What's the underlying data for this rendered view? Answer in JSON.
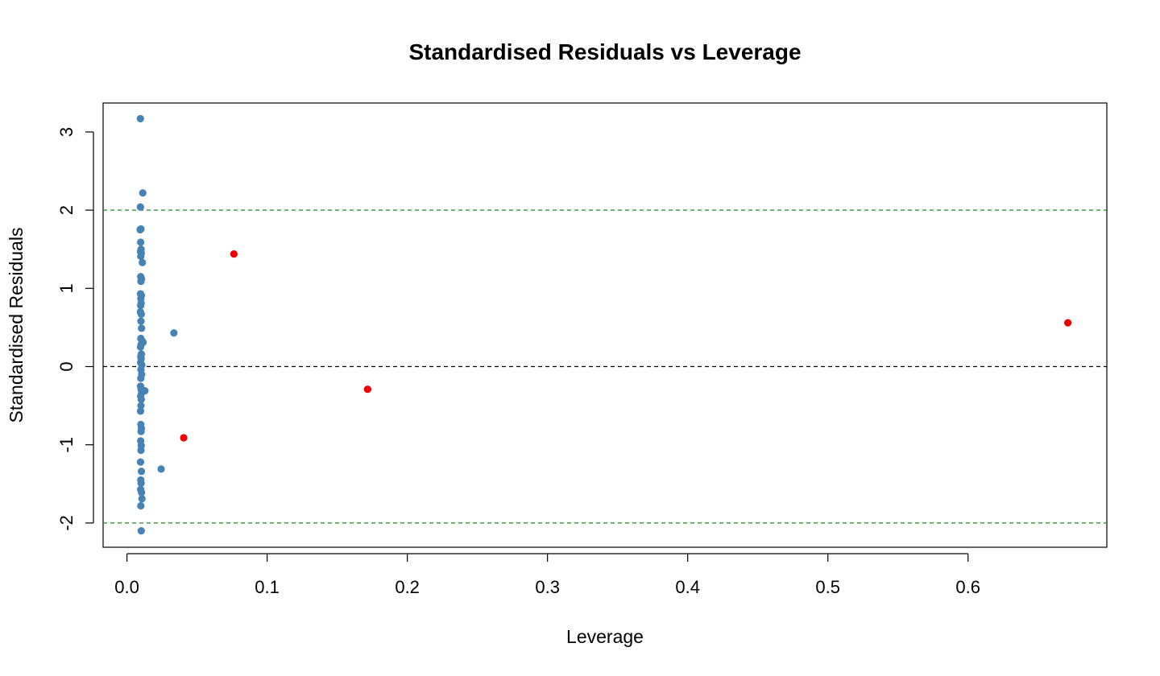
{
  "chart_data": {
    "type": "scatter",
    "title": "Standardised Residuals vs Leverage",
    "xlabel": "Leverage",
    "ylabel": "Standardised Residuals",
    "xlim": [
      -0.017,
      0.699
    ],
    "ylim": [
      -2.31,
      3.37
    ],
    "x_ticks": [
      0.0,
      0.1,
      0.2,
      0.3,
      0.4,
      0.5,
      0.6
    ],
    "x_tick_labels": [
      "0.0",
      "0.1",
      "0.2",
      "0.3",
      "0.4",
      "0.5",
      "0.6"
    ],
    "y_ticks": [
      -2,
      -1,
      0,
      1,
      2,
      3
    ],
    "y_tick_labels": [
      "-2",
      "-1",
      "0",
      "1",
      "2",
      "3"
    ],
    "grid": false,
    "reference_lines": [
      {
        "y": 0,
        "style": "dashed",
        "color": "#000000"
      },
      {
        "y": 2,
        "style": "dashed",
        "color": "#228b22"
      },
      {
        "y": -2,
        "style": "dashed",
        "color": "#228b22"
      }
    ],
    "series": [
      {
        "color": "#4682b4",
        "points": [
          [
            0.0096,
            3.17
          ],
          [
            0.0113,
            2.22
          ],
          [
            0.0096,
            2.04
          ],
          [
            0.01,
            1.76
          ],
          [
            0.0094,
            1.75
          ],
          [
            0.0098,
            1.59
          ],
          [
            0.0101,
            1.5
          ],
          [
            0.0097,
            1.47
          ],
          [
            0.0102,
            1.45
          ],
          [
            0.0099,
            1.41
          ],
          [
            0.011,
            1.33
          ],
          [
            0.0098,
            1.15
          ],
          [
            0.0104,
            1.12
          ],
          [
            0.01,
            1.09
          ],
          [
            0.0097,
            0.93
          ],
          [
            0.0103,
            0.91
          ],
          [
            0.0099,
            0.87
          ],
          [
            0.0101,
            0.81
          ],
          [
            0.0098,
            0.78
          ],
          [
            0.0096,
            0.7
          ],
          [
            0.0102,
            0.67
          ],
          [
            0.01,
            0.58
          ],
          [
            0.0104,
            0.49
          ],
          [
            0.0335,
            0.43
          ],
          [
            0.0099,
            0.36
          ],
          [
            0.0107,
            0.33
          ],
          [
            0.0115,
            0.31
          ],
          [
            0.0101,
            0.28
          ],
          [
            0.0097,
            0.25
          ],
          [
            0.0103,
            0.16
          ],
          [
            0.0099,
            0.13
          ],
          [
            0.0101,
            0.1
          ],
          [
            0.0098,
            0.05
          ],
          [
            0.0106,
            0.02
          ],
          [
            0.01,
            -0.04
          ],
          [
            0.0105,
            -0.1
          ],
          [
            0.0099,
            -0.15
          ],
          [
            0.0097,
            -0.25
          ],
          [
            0.0101,
            -0.29
          ],
          [
            0.0128,
            -0.31
          ],
          [
            0.0104,
            -0.34
          ],
          [
            0.0098,
            -0.38
          ],
          [
            0.0102,
            -0.42
          ],
          [
            0.01,
            -0.5
          ],
          [
            0.0097,
            -0.57
          ],
          [
            0.0099,
            -0.74
          ],
          [
            0.0103,
            -0.79
          ],
          [
            0.0101,
            -0.83
          ],
          [
            0.0098,
            -0.95
          ],
          [
            0.0102,
            -1.01
          ],
          [
            0.01,
            -1.07
          ],
          [
            0.0097,
            -1.22
          ],
          [
            0.0244,
            -1.31
          ],
          [
            0.0103,
            -1.34
          ],
          [
            0.0099,
            -1.45
          ],
          [
            0.0101,
            -1.49
          ],
          [
            0.0098,
            -1.57
          ],
          [
            0.0104,
            -1.61
          ],
          [
            0.0107,
            -1.69
          ],
          [
            0.0099,
            -1.78
          ],
          [
            0.0102,
            -2.1
          ]
        ]
      },
      {
        "color": "#ee0000",
        "points": [
          [
            0.0763,
            1.44
          ],
          [
            0.0405,
            -0.91
          ],
          [
            0.1717,
            -0.29
          ],
          [
            0.6712,
            0.56
          ]
        ]
      }
    ]
  }
}
